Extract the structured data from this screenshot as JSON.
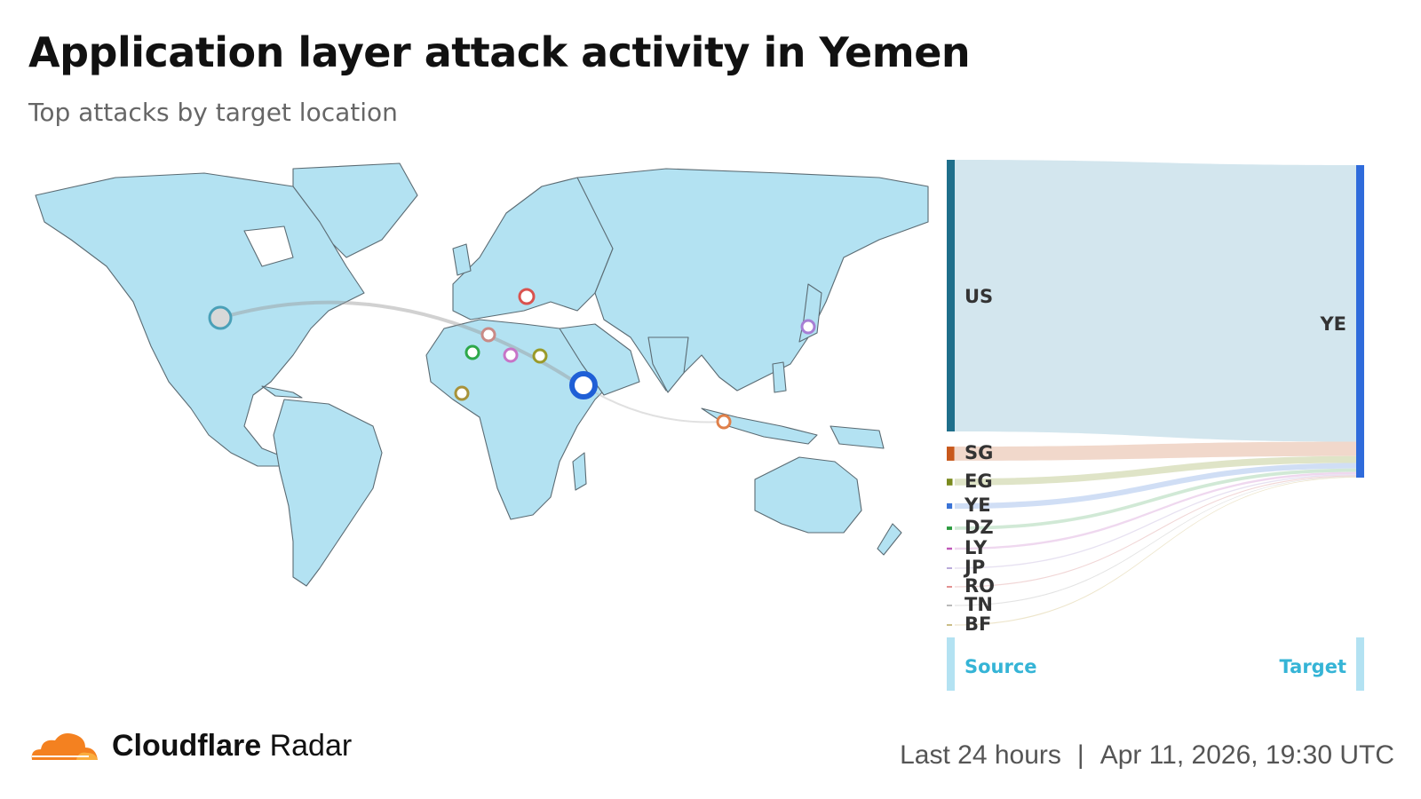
{
  "header": {
    "title": "Application layer attack activity in Yemen",
    "subtitle": "Top attacks by target location"
  },
  "colors": {
    "land": "#b3e2f2",
    "border": "#5b6b73",
    "target_bar": "#2f6bdb",
    "us_bar": "#1f6f8b",
    "label_blue": "#35b4d6",
    "logo_orange": "#f48120"
  },
  "map": {
    "markers": [
      {
        "code": "US",
        "color": "#4aa0b8",
        "fill": "#d8d8d8"
      },
      {
        "code": "YE",
        "color": "#1f5fd6",
        "fill": "#ffffff"
      },
      {
        "code": "RO",
        "color": "#d9534f",
        "fill": "#ffffff"
      },
      {
        "code": "TN",
        "color": "#c98a86",
        "fill": "#ffffff"
      },
      {
        "code": "DZ",
        "color": "#2ea84a",
        "fill": "#ffffff"
      },
      {
        "code": "LY",
        "color": "#c774c7",
        "fill": "#ffffff"
      },
      {
        "code": "EG",
        "color": "#9a9a2a",
        "fill": "#ffffff"
      },
      {
        "code": "BF",
        "color": "#a8923a",
        "fill": "#ffffff"
      },
      {
        "code": "SG",
        "color": "#e0804a",
        "fill": "#ffffff"
      },
      {
        "code": "JP",
        "color": "#a77fd4",
        "fill": "#ffffff"
      }
    ]
  },
  "chart_data": {
    "type": "sankey",
    "target": "YE",
    "source_axis_label": "Source",
    "target_axis_label": "Target",
    "sources": [
      {
        "code": "US",
        "share": 88.5,
        "color": "#1f6f8b",
        "link": "#d3e6ee"
      },
      {
        "code": "SG",
        "share": 4.6,
        "color": "#c8581c",
        "link": "#f0d6c8"
      },
      {
        "code": "EG",
        "share": 2.2,
        "color": "#7a8a1e",
        "link": "#dde3c4"
      },
      {
        "code": "YE",
        "share": 1.8,
        "color": "#3a73d6",
        "link": "#cddcf4"
      },
      {
        "code": "DZ",
        "share": 1.1,
        "color": "#2b9a3e",
        "link": "#cfe8d4"
      },
      {
        "code": "LY",
        "share": 0.7,
        "color": "#c058b8",
        "link": "#eed6ee"
      },
      {
        "code": "JP",
        "share": 0.4,
        "color": "#9b86c9",
        "link": "#e6dff0"
      },
      {
        "code": "RO",
        "share": 0.3,
        "color": "#d04848",
        "link": "#f0d4d4"
      },
      {
        "code": "TN",
        "share": 0.2,
        "color": "#8a8a8a",
        "link": "#e2e2e2"
      },
      {
        "code": "BF",
        "share": 0.2,
        "color": "#a8923a",
        "link": "#ece4c8"
      }
    ]
  },
  "footer": {
    "brand_bold": "Cloudflare",
    "brand_regular": "Radar",
    "period": "Last 24 hours",
    "separator": "|",
    "timestamp": "Apr 11, 2026, 19:30 UTC"
  }
}
